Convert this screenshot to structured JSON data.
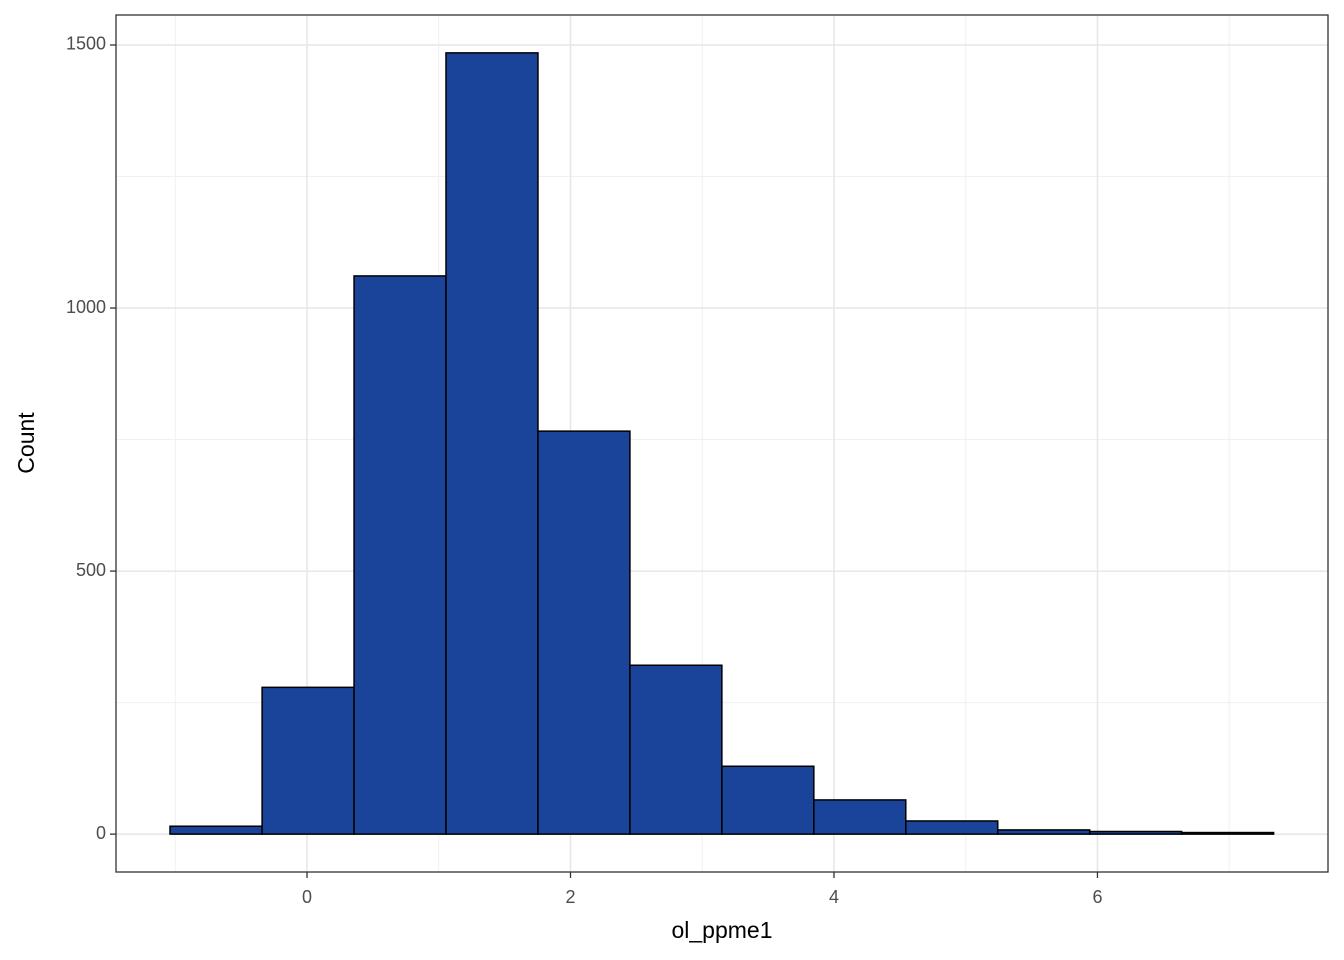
{
  "chart_data": {
    "type": "histogram",
    "x_label": "ol_ppme1",
    "y_label": "Count",
    "bins": [
      -1.04,
      -0.341,
      0.357,
      1.055,
      1.753,
      2.451,
      3.149,
      3.847,
      4.545,
      5.243,
      5.941,
      6.639,
      7.337
    ],
    "values": [
      15,
      279,
      1061,
      1485,
      766,
      321,
      129,
      65,
      25,
      8,
      5,
      3
    ],
    "color": "#1a4499",
    "edge_color": "#000000",
    "xlim": [
      -1.45,
      7.75
    ],
    "ylim": [
      -72,
      1557
    ],
    "xticks": [
      0,
      2,
      4,
      6
    ],
    "yticks": [
      0,
      500,
      1000,
      1500
    ],
    "x_minor_ticks": [
      -1,
      1,
      3,
      5,
      7
    ],
    "y_minor_ticks": [
      250,
      750,
      1250
    ],
    "grid": true
  }
}
